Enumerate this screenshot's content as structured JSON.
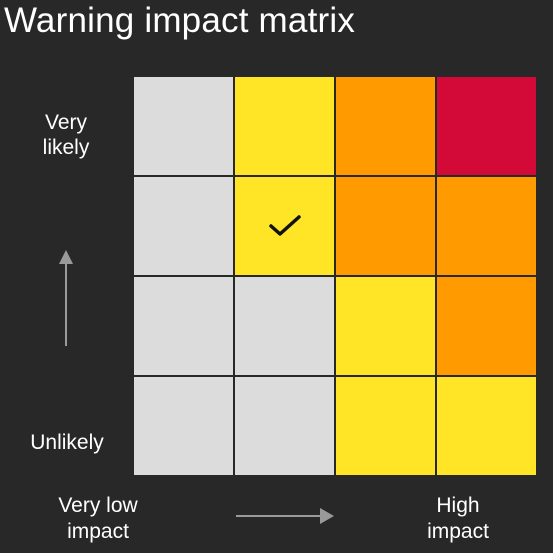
{
  "title": "Warning impact matrix",
  "y_axis": {
    "top_label_line1": "Very",
    "top_label_line2": "likely",
    "bottom_label": "Unlikely"
  },
  "x_axis": {
    "left_label_line1": "Very low",
    "left_label_line2": "impact",
    "right_label_line1": "High",
    "right_label_line2": "impact"
  },
  "colors": {
    "grey": "#dcdcdc",
    "yellow": "#ffe526",
    "orange": "#ff9a00",
    "red": "#d30a37",
    "background": "#282828",
    "arrow": "#9a9a9a"
  },
  "matrix": {
    "rows": [
      [
        "grey",
        "yellow",
        "orange",
        "red"
      ],
      [
        "grey",
        "yellow",
        "orange",
        "orange"
      ],
      [
        "grey",
        "grey",
        "yellow",
        "orange"
      ],
      [
        "grey",
        "grey",
        "yellow",
        "yellow"
      ]
    ],
    "selected": {
      "row": 1,
      "col": 1,
      "icon": "check-icon"
    }
  }
}
